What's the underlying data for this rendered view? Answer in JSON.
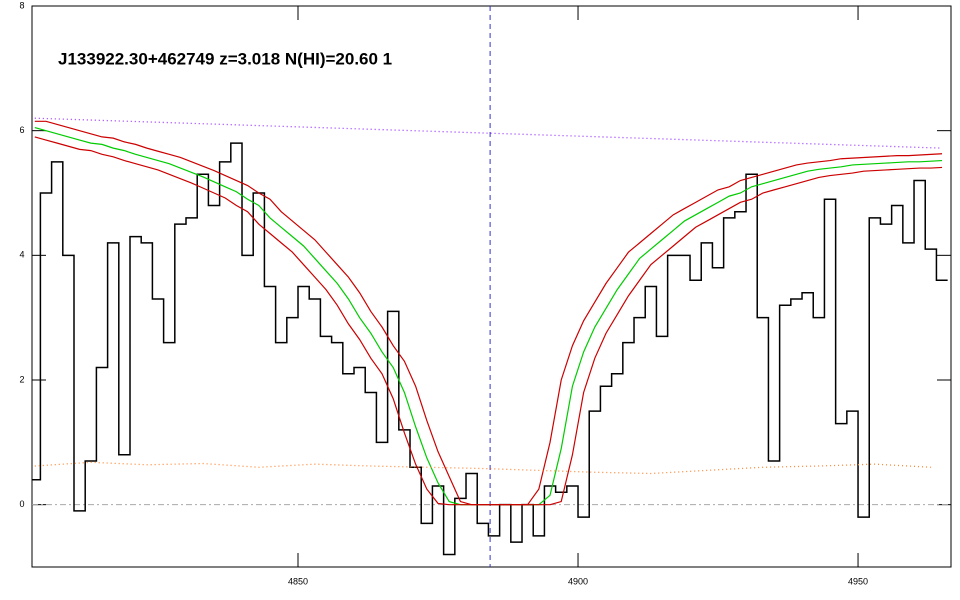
{
  "chart_data": {
    "type": "line",
    "title": "J133922.30+462749 z=3.018 N(HI)=20.60 1",
    "xlim": [
      4802.5,
      4966.6
    ],
    "ylim": [
      -1,
      8
    ],
    "xticks": [
      4850,
      4900,
      4950
    ],
    "yticks": [
      0,
      2,
      4,
      6,
      8
    ],
    "hline": 0,
    "vline": 4884.3,
    "x": [
      4803,
      4805,
      4807,
      4809,
      4811,
      4813,
      4815,
      4817,
      4819,
      4821,
      4823,
      4825,
      4827,
      4829,
      4831,
      4833,
      4835,
      4837,
      4839,
      4841,
      4843,
      4845,
      4847,
      4849,
      4851,
      4853,
      4855,
      4857,
      4859,
      4861,
      4863,
      4865,
      4867,
      4869,
      4871,
      4873,
      4875,
      4877,
      4879,
      4881,
      4883,
      4885,
      4887,
      4889,
      4891,
      4893,
      4895,
      4897,
      4899,
      4901,
      4903,
      4905,
      4907,
      4909,
      4911,
      4913,
      4915,
      4917,
      4919,
      4921,
      4923,
      4925,
      4927,
      4929,
      4931,
      4933,
      4935,
      4937,
      4939,
      4941,
      4943,
      4945,
      4947,
      4949,
      4951,
      4953,
      4955,
      4957,
      4959,
      4961,
      4963,
      4965
    ],
    "series": [
      {
        "color": "#000000",
        "style": "step",
        "values": [
          0.4,
          5.0,
          5.5,
          4.0,
          -0.1,
          0.7,
          2.2,
          4.2,
          0.8,
          4.3,
          4.2,
          3.3,
          2.6,
          4.5,
          4.6,
          5.3,
          4.8,
          5.5,
          5.8,
          4.0,
          5.0,
          3.5,
          2.6,
          3.0,
          3.5,
          3.3,
          2.7,
          2.6,
          2.1,
          2.2,
          1.8,
          1.0,
          3.1,
          1.2,
          0.6,
          -0.3,
          0.3,
          -0.8,
          0.1,
          0.5,
          -0.3,
          -0.5,
          0.0,
          -0.6,
          0.0,
          -0.5,
          0.3,
          0.2,
          0.3,
          -0.2,
          1.5,
          1.9,
          2.1,
          2.6,
          3.0,
          3.5,
          2.7,
          4.0,
          4.0,
          3.6,
          4.2,
          3.8,
          4.6,
          4.7,
          5.3,
          3.0,
          0.7,
          3.2,
          3.3,
          3.4,
          3.0,
          4.9,
          1.3,
          1.5,
          -0.2,
          4.6,
          4.5,
          4.8,
          4.2,
          5.2,
          4.1,
          3.6
        ]
      },
      {
        "color": "#00cc00",
        "style": "solid",
        "values": [
          6.05,
          6.0,
          5.95,
          5.9,
          5.85,
          5.8,
          5.78,
          5.72,
          5.68,
          5.62,
          5.57,
          5.52,
          5.47,
          5.4,
          5.33,
          5.26,
          5.18,
          5.1,
          5.02,
          4.9,
          4.8,
          4.6,
          4.45,
          4.3,
          4.15,
          3.95,
          3.75,
          3.55,
          3.3,
          3.0,
          2.75,
          2.45,
          2.2,
          1.8,
          1.25,
          0.75,
          0.35,
          0.05,
          0,
          0,
          0,
          0,
          0,
          0,
          0,
          0,
          0.15,
          0.9,
          1.9,
          2.45,
          2.85,
          3.15,
          3.45,
          3.7,
          3.95,
          4.1,
          4.25,
          4.4,
          4.55,
          4.65,
          4.75,
          4.85,
          4.95,
          5.0,
          5.1,
          5.15,
          5.2,
          5.25,
          5.3,
          5.35,
          5.38,
          5.4,
          5.42,
          5.45,
          5.46,
          5.47,
          5.48,
          5.49,
          5.5,
          5.5,
          5.51,
          5.52
        ]
      },
      {
        "color": "#cc0000",
        "style": "solid",
        "values": [
          6.15,
          6.15,
          6.1,
          6.05,
          6.0,
          5.95,
          5.9,
          5.88,
          5.82,
          5.78,
          5.72,
          5.67,
          5.62,
          5.57,
          5.5,
          5.43,
          5.36,
          5.28,
          5.2,
          5.12,
          5.0,
          4.9,
          4.7,
          4.55,
          4.4,
          4.25,
          4.05,
          3.85,
          3.65,
          3.4,
          3.1,
          2.85,
          2.55,
          2.3,
          1.9,
          1.35,
          0.85,
          0.45,
          0.05,
          0,
          0,
          0,
          0,
          0,
          0,
          0.25,
          1.0,
          2.0,
          2.55,
          2.95,
          3.25,
          3.55,
          3.8,
          4.05,
          4.2,
          4.35,
          4.5,
          4.65,
          4.75,
          4.85,
          4.95,
          5.05,
          5.1,
          5.2,
          5.25,
          5.3,
          5.35,
          5.4,
          5.45,
          5.48,
          5.5,
          5.52,
          5.55,
          5.56,
          5.57,
          5.58,
          5.59,
          5.6,
          5.6,
          5.61,
          5.62,
          5.63
        ]
      },
      {
        "color": "#cc0000",
        "style": "solid",
        "values": [
          5.9,
          5.85,
          5.8,
          5.75,
          5.7,
          5.68,
          5.62,
          5.58,
          5.52,
          5.47,
          5.42,
          5.37,
          5.3,
          5.23,
          5.16,
          5.08,
          5.0,
          4.92,
          4.8,
          4.7,
          4.5,
          4.35,
          4.2,
          4.05,
          3.85,
          3.65,
          3.45,
          3.2,
          2.9,
          2.65,
          2.35,
          2.1,
          1.7,
          1.15,
          0.65,
          0.25,
          0.02,
          0,
          0,
          0,
          0,
          0,
          0,
          0,
          0,
          0,
          0,
          0.05,
          0.8,
          1.8,
          2.35,
          2.75,
          3.05,
          3.35,
          3.6,
          3.85,
          4.0,
          4.15,
          4.3,
          4.45,
          4.55,
          4.65,
          4.75,
          4.85,
          4.9,
          5.0,
          5.05,
          5.1,
          5.15,
          5.2,
          5.25,
          5.28,
          5.3,
          5.32,
          5.35,
          5.36,
          5.37,
          5.38,
          5.39,
          5.4,
          5.4,
          5.41
        ]
      },
      {
        "color": "#9933ff",
        "style": "dotted",
        "x": [
          4803,
          4965
        ],
        "values": [
          6.2,
          5.72
        ]
      },
      {
        "color": "#ff8833",
        "style": "dotted",
        "x": [
          4803,
          4813,
          4823,
          4833,
          4843,
          4853,
          4863,
          4873,
          4883,
          4893,
          4903,
          4913,
          4923,
          4933,
          4943,
          4953,
          4963
        ],
        "values": [
          0.62,
          0.68,
          0.64,
          0.66,
          0.6,
          0.65,
          0.62,
          0.6,
          0.58,
          0.55,
          0.52,
          0.5,
          0.55,
          0.6,
          0.62,
          0.65,
          0.6
        ]
      }
    ]
  }
}
